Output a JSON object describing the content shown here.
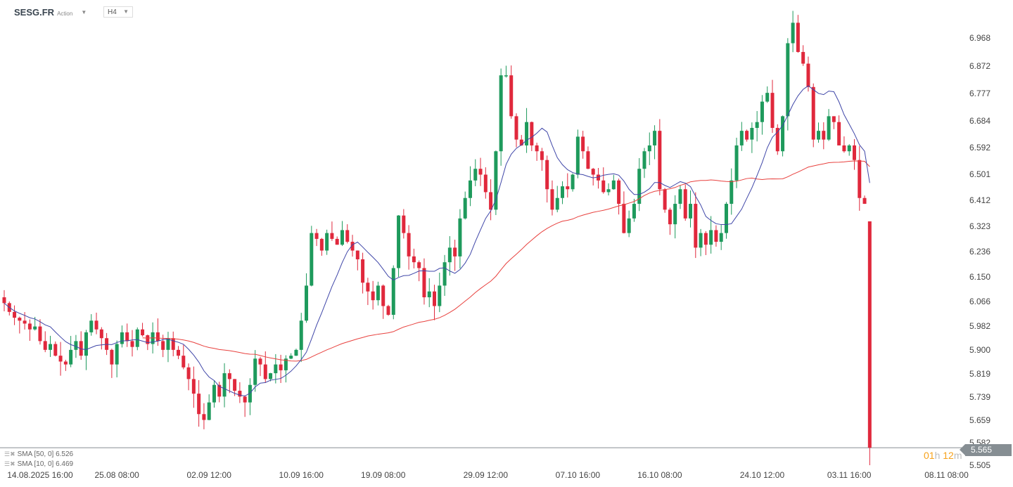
{
  "header": {
    "symbol": "SESG.FR",
    "type": "Action",
    "timeframe": "H4"
  },
  "legend": [
    {
      "label": "SMA [50, 0] 6.526",
      "color": "#e8413e"
    },
    {
      "label": "SMA [10, 0] 6.469",
      "color": "#3f46a8"
    }
  ],
  "current_price": "5.565",
  "countdown": {
    "h": "01",
    "h_unit": "h",
    "m": "12",
    "m_unit": "m"
  },
  "colors": {
    "up": "#1e9a5c",
    "down": "#e0283c",
    "sma50": "#e8413e",
    "sma10": "#3f46a8",
    "price_line": "#868e93"
  },
  "chart_data": {
    "type": "candlestick",
    "title": "SESG.FR H4",
    "ylim": [
      5.48,
      7.08
    ],
    "y_ticks": [
      "6.968",
      "6.872",
      "6.777",
      "6.684",
      "6.592",
      "6.501",
      "6.412",
      "6.323",
      "6.236",
      "6.150",
      "6.066",
      "5.982",
      "5.900",
      "5.819",
      "5.739",
      "5.659",
      "5.582",
      "5.505"
    ],
    "x_ticks": [
      {
        "i": 7,
        "label": "14.08.2025  16:00"
      },
      {
        "i": 22,
        "label": "25.08  08:00"
      },
      {
        "i": 40,
        "label": "02.09  12:00"
      },
      {
        "i": 58,
        "label": "10.09  16:00"
      },
      {
        "i": 74,
        "label": "19.09  08:00"
      },
      {
        "i": 94,
        "label": "29.09  12:00"
      },
      {
        "i": 112,
        "label": "07.10  16:00"
      },
      {
        "i": 128,
        "label": "16.10  08:00"
      },
      {
        "i": 148,
        "label": "24.10  12:00"
      },
      {
        "i": 165,
        "label": "03.11  16:00"
      },
      {
        "i": 184,
        "label": "08.11  08:00"
      }
    ],
    "first_open": 6.08,
    "close": [
      6.06,
      6.03,
      6.01,
      6.0,
      5.99,
      5.97,
      5.98,
      5.93,
      5.9,
      5.92,
      5.88,
      5.86,
      5.85,
      5.9,
      5.93,
      5.88,
      5.96,
      6.0,
      5.97,
      5.94,
      5.9,
      5.85,
      5.92,
      5.96,
      5.93,
      5.91,
      5.97,
      5.95,
      5.92,
      5.96,
      5.93,
      5.9,
      5.94,
      5.9,
      5.88,
      5.84,
      5.8,
      5.75,
      5.68,
      5.66,
      5.72,
      5.78,
      5.74,
      5.82,
      5.8,
      5.76,
      5.74,
      5.72,
      5.78,
      5.87,
      5.85,
      5.8,
      5.82,
      5.85,
      5.83,
      5.87,
      5.88,
      5.9,
      6.0,
      6.12,
      6.3,
      6.28,
      6.24,
      6.3,
      6.28,
      6.26,
      6.31,
      6.27,
      6.24,
      6.21,
      6.13,
      6.1,
      6.07,
      6.12,
      6.05,
      6.02,
      6.18,
      6.36,
      6.3,
      6.22,
      6.2,
      6.18,
      6.08,
      6.1,
      6.05,
      6.12,
      6.2,
      6.25,
      6.22,
      6.35,
      6.42,
      6.48,
      6.52,
      6.5,
      6.44,
      6.38,
      6.58,
      6.84,
      6.84,
      6.7,
      6.62,
      6.6,
      6.68,
      6.6,
      6.58,
      6.55,
      6.45,
      6.38,
      6.42,
      6.46,
      6.45,
      6.5,
      6.63,
      6.58,
      6.52,
      6.5,
      6.48,
      6.44,
      6.45,
      6.48,
      6.4,
      6.3,
      6.35,
      6.4,
      6.52,
      6.58,
      6.6,
      6.65,
      6.45,
      6.38,
      6.33,
      6.4,
      6.45,
      6.35,
      6.4,
      6.25,
      6.3,
      6.26,
      6.31,
      6.27,
      6.3,
      6.4,
      6.48,
      6.6,
      6.65,
      6.62,
      6.66,
      6.68,
      6.75,
      6.78,
      6.66,
      6.58,
      6.7,
      6.95,
      7.02,
      6.92,
      6.88,
      6.8,
      6.62,
      6.65,
      6.62,
      6.7,
      6.68,
      6.6,
      6.58,
      6.6,
      6.55,
      6.42,
      6.4,
      5.565
    ],
    "last_candle": {
      "open": 6.34,
      "high": 6.34,
      "low": 5.505,
      "close": 5.565
    },
    "series": [
      {
        "name": "SMA 50",
        "period": 50
      },
      {
        "name": "SMA 10",
        "period": 10
      }
    ]
  }
}
